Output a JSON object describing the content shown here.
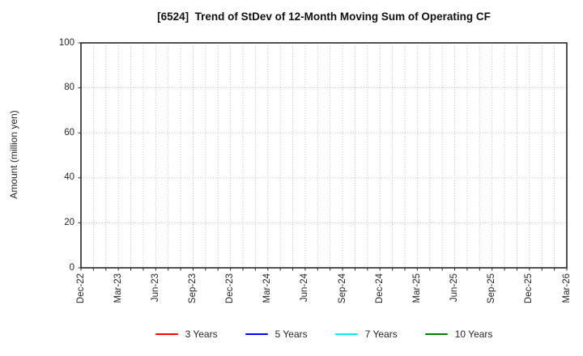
{
  "chart_data": {
    "type": "line",
    "title": "[6524]  Trend of StDev of 12-Month Moving Sum of Operating CF",
    "xlabel": "",
    "ylabel": "Amount (million yen)",
    "ylim": [
      0,
      100
    ],
    "yticks": [
      0,
      20,
      40,
      60,
      80,
      100
    ],
    "x_tick_labels": [
      "Dec-22",
      "Mar-23",
      "Jun-23",
      "Sep-23",
      "Dec-23",
      "Mar-24",
      "Jun-24",
      "Sep-24",
      "Dec-24",
      "Mar-25",
      "Jun-25",
      "Sep-25",
      "Dec-25",
      "Mar-26"
    ],
    "months_per_tick": 3,
    "grid": true,
    "grid_style": "dotted",
    "legend_position": "bottom-center",
    "axis_color": "#262626",
    "grid_color": "#b3b3b3",
    "series": [
      {
        "name": "3 Years",
        "color": "#ff0000",
        "values": []
      },
      {
        "name": "5 Years",
        "color": "#0000ff",
        "values": []
      },
      {
        "name": "7 Years",
        "color": "#00eeee",
        "values": []
      },
      {
        "name": "10 Years",
        "color": "#008000",
        "values": []
      }
    ]
  }
}
